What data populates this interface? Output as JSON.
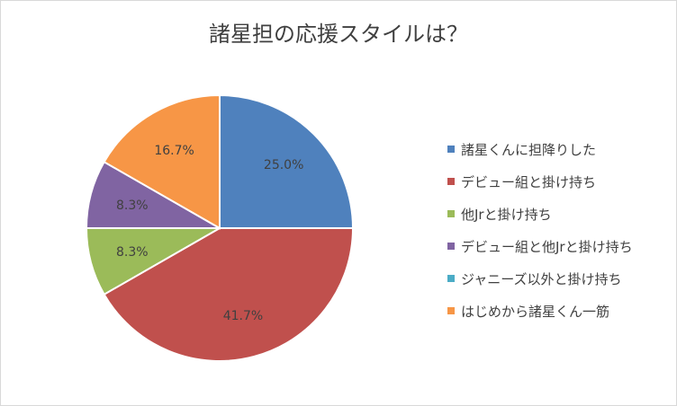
{
  "chart_data": {
    "type": "pie",
    "title": "諸星担の応援スタイルは？",
    "slices": [
      {
        "label": "諸星くんに担降りした",
        "value": 25.0,
        "display": "25.0%",
        "color": "#4f81bd"
      },
      {
        "label": "デビュー組と掛け持ち",
        "value": 41.7,
        "display": "41.7%",
        "color": "#c0504d"
      },
      {
        "label": "他Jrと掛け持ち",
        "value": 8.3,
        "display": "8.3%",
        "color": "#9bbb59"
      },
      {
        "label": "デビュー組と他Jrと掛け持ち",
        "value": 8.3,
        "display": "8.3%",
        "color": "#8064a2"
      },
      {
        "label": "ジャニーズ以外と掛け持ち",
        "value": 0,
        "display": "",
        "color": "#4bacc6"
      },
      {
        "label": "はじめから諸星くん一筋",
        "value": 16.7,
        "display": "16.7%",
        "color": "#f79646"
      }
    ],
    "legend_position": "right"
  }
}
